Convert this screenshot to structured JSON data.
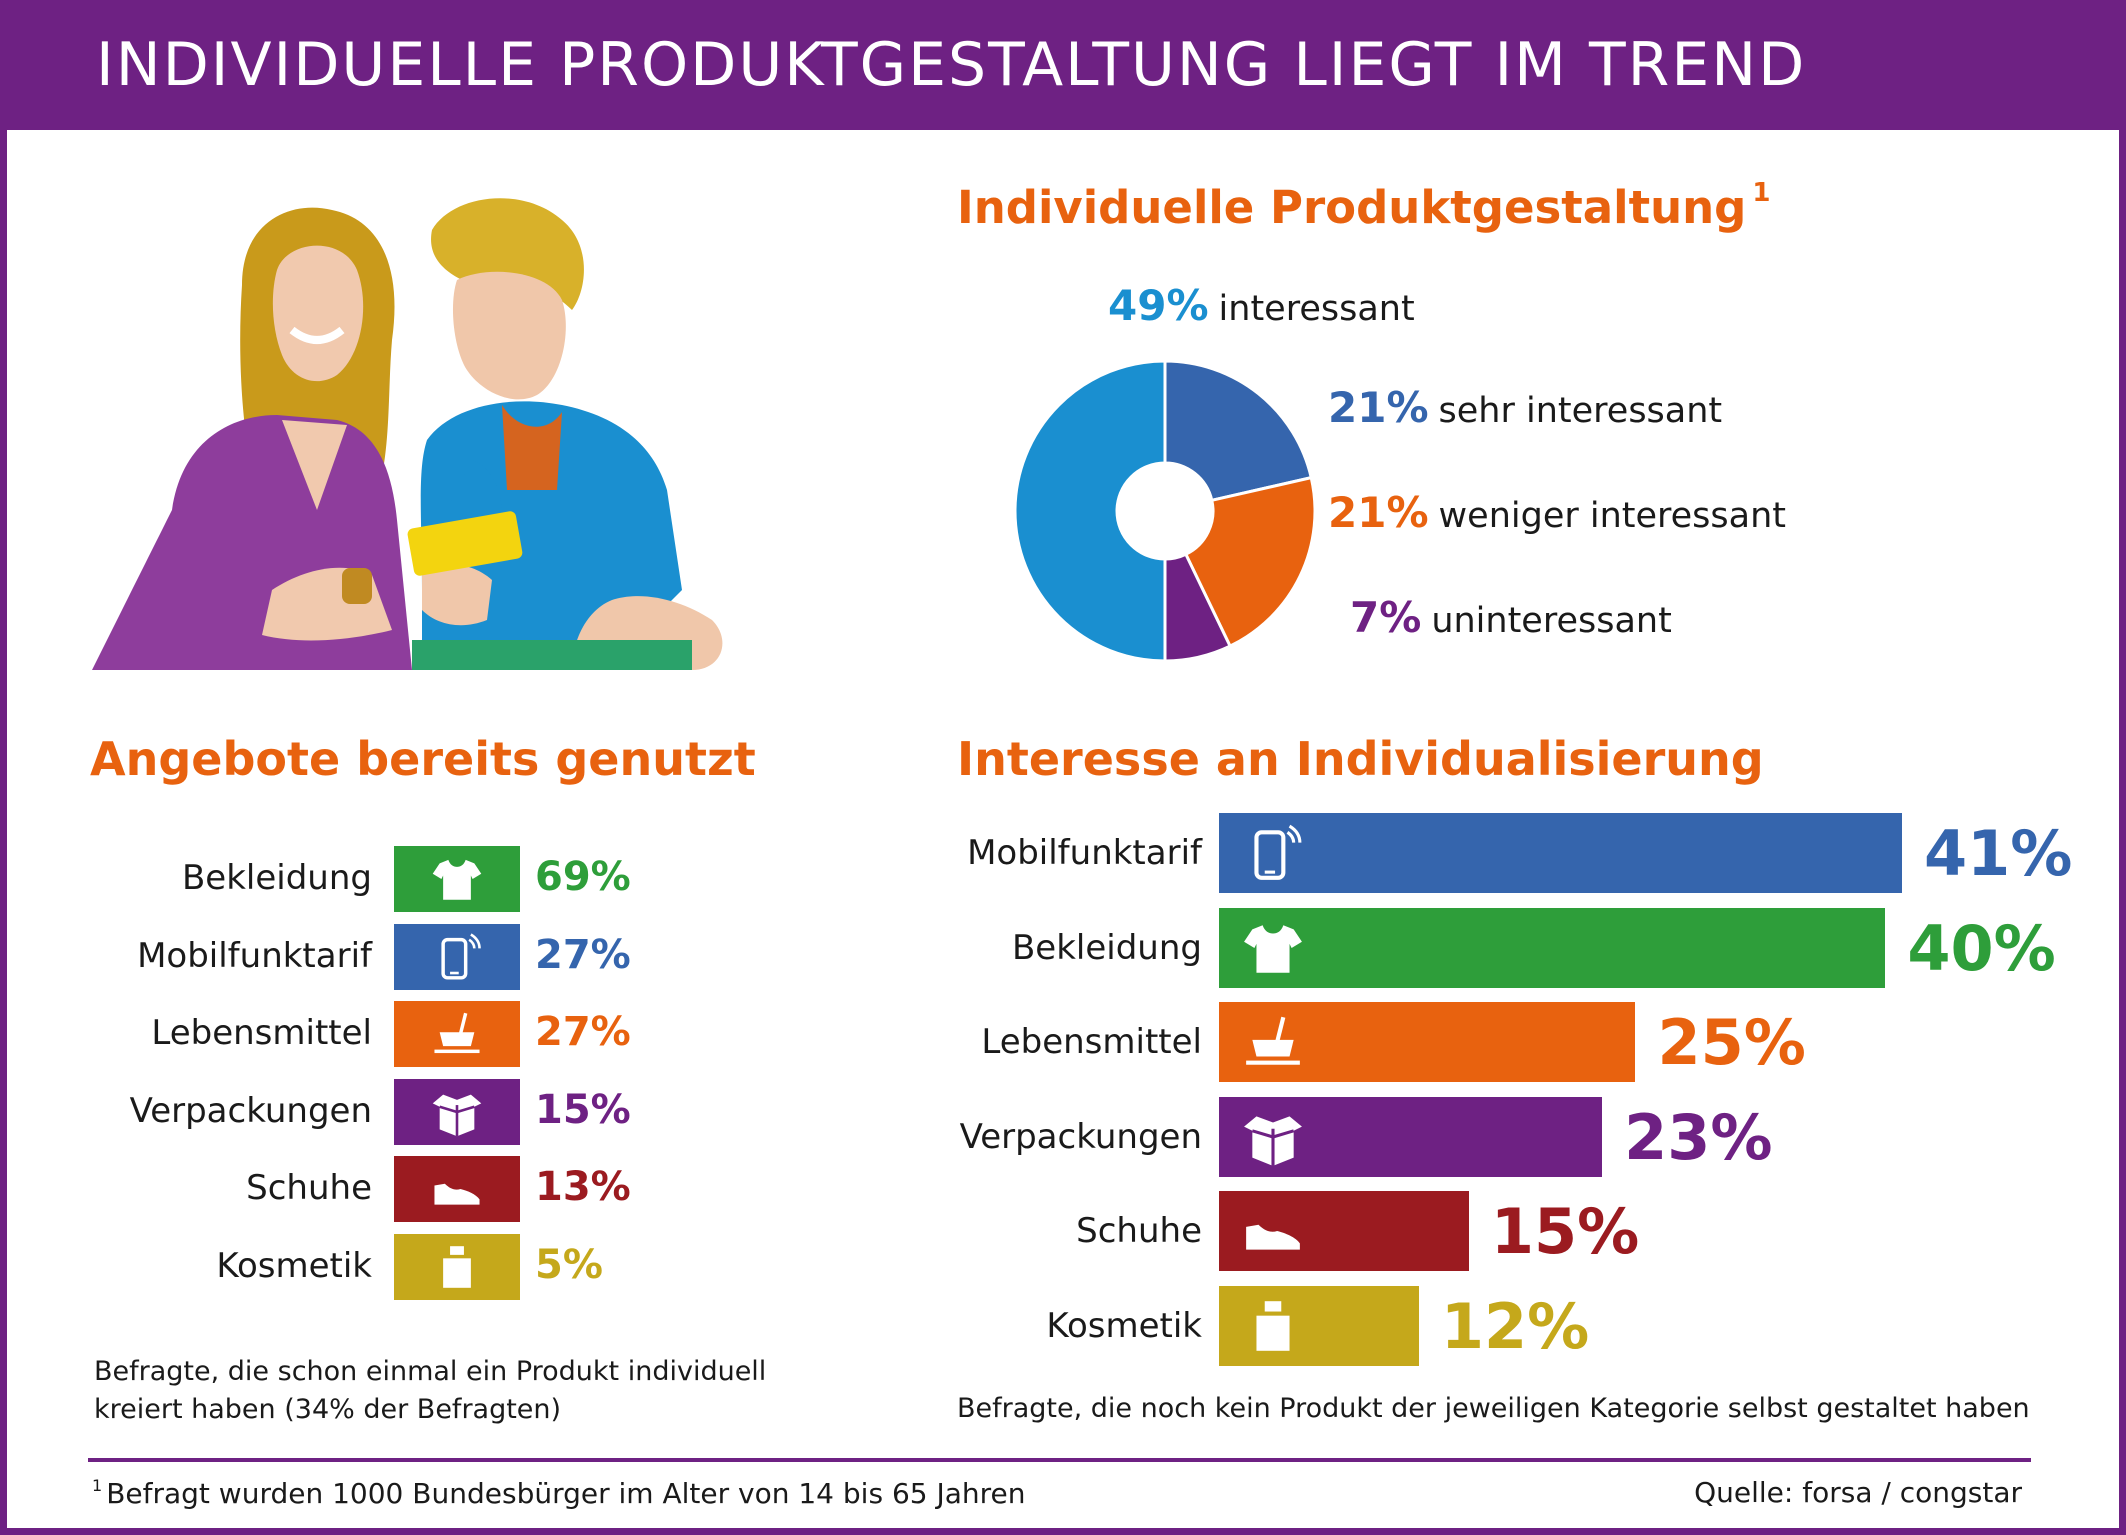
{
  "header": {
    "title": "INDIVIDUELLE PRODUKTGESTALTUNG LIEGT IM TREND"
  },
  "colors": {
    "purple": "#6e2183",
    "orange": "#e8620f",
    "blue": "#3565ad",
    "lightblue": "#1a8fd0",
    "green": "#2e9e3a",
    "darkred": "#9b1b20",
    "gold": "#c5a81b"
  },
  "donut": {
    "title": "Individuelle Produktgestaltung",
    "footnote_mark": "1",
    "legend": [
      {
        "pct": "49%",
        "label": "interessant"
      },
      {
        "pct": "21%",
        "label": "sehr interessant"
      },
      {
        "pct": "21%",
        "label": "weniger interessant"
      },
      {
        "pct": "7%",
        "label": "uninteressant"
      }
    ]
  },
  "used": {
    "title": "Angebote bereits genutzt",
    "note_line1": "Befragte, die schon einmal ein Produkt individuell",
    "note_line2": "kreiert haben (34% der Befragten)",
    "rows": [
      {
        "label": "Bekleidung",
        "value": "69%",
        "icon": "tshirt-icon"
      },
      {
        "label": "Mobilfunktarif",
        "value": "27%",
        "icon": "phone-icon"
      },
      {
        "label": "Lebensmittel",
        "value": "27%",
        "icon": "bowl-icon"
      },
      {
        "label": "Verpackungen",
        "value": "15%",
        "icon": "box-icon"
      },
      {
        "label": "Schuhe",
        "value": "13%",
        "icon": "shoe-icon"
      },
      {
        "label": "Kosmetik",
        "value": "5%",
        "icon": "bottle-icon"
      }
    ]
  },
  "interest": {
    "title": "Interesse an Individualisierung",
    "note": "Befragte, die noch kein Produkt der jeweiligen Kategorie selbst gestaltet haben",
    "rows": [
      {
        "label": "Mobilfunktarif",
        "value": "41%",
        "icon": "phone-icon"
      },
      {
        "label": "Bekleidung",
        "value": "40%",
        "icon": "tshirt-icon"
      },
      {
        "label": "Lebensmittel",
        "value": "25%",
        "icon": "bowl-icon"
      },
      {
        "label": "Verpackungen",
        "value": "23%",
        "icon": "box-icon"
      },
      {
        "label": "Schuhe",
        "value": "15%",
        "icon": "shoe-icon"
      },
      {
        "label": "Kosmetik",
        "value": "12%",
        "icon": "bottle-icon"
      }
    ]
  },
  "footer": {
    "footnote_mark": "1",
    "footnote": "Befragt wurden 1000 Bundesbürger im Alter von 14 bis 65 Jahren",
    "source": "Quelle: forsa / congstar"
  },
  "chart_data": [
    {
      "type": "pie",
      "title": "Individuelle Produktgestaltung",
      "categories": [
        "interessant",
        "sehr interessant",
        "weniger interessant",
        "uninteressant"
      ],
      "values": [
        49,
        21,
        21,
        7
      ],
      "unit": "%",
      "colors": [
        "#1a8fd0",
        "#3565ad",
        "#e8620f",
        "#6e2183"
      ]
    },
    {
      "type": "bar",
      "title": "Angebote bereits genutzt",
      "categories": [
        "Bekleidung",
        "Mobilfunktarif",
        "Lebensmittel",
        "Verpackungen",
        "Schuhe",
        "Kosmetik"
      ],
      "values": [
        69,
        27,
        27,
        15,
        13,
        5
      ],
      "unit": "%",
      "colors": [
        "#2e9e3a",
        "#3565ad",
        "#e8620f",
        "#6e2183",
        "#9b1b20",
        "#c5a81b"
      ]
    },
    {
      "type": "bar",
      "title": "Interesse an Individualisierung",
      "categories": [
        "Mobilfunktarif",
        "Bekleidung",
        "Lebensmittel",
        "Verpackungen",
        "Schuhe",
        "Kosmetik"
      ],
      "values": [
        41,
        40,
        25,
        23,
        15,
        12
      ],
      "unit": "%",
      "colors": [
        "#3565ad",
        "#2e9e3a",
        "#e8620f",
        "#6e2183",
        "#9b1b20",
        "#c5a81b"
      ]
    }
  ]
}
